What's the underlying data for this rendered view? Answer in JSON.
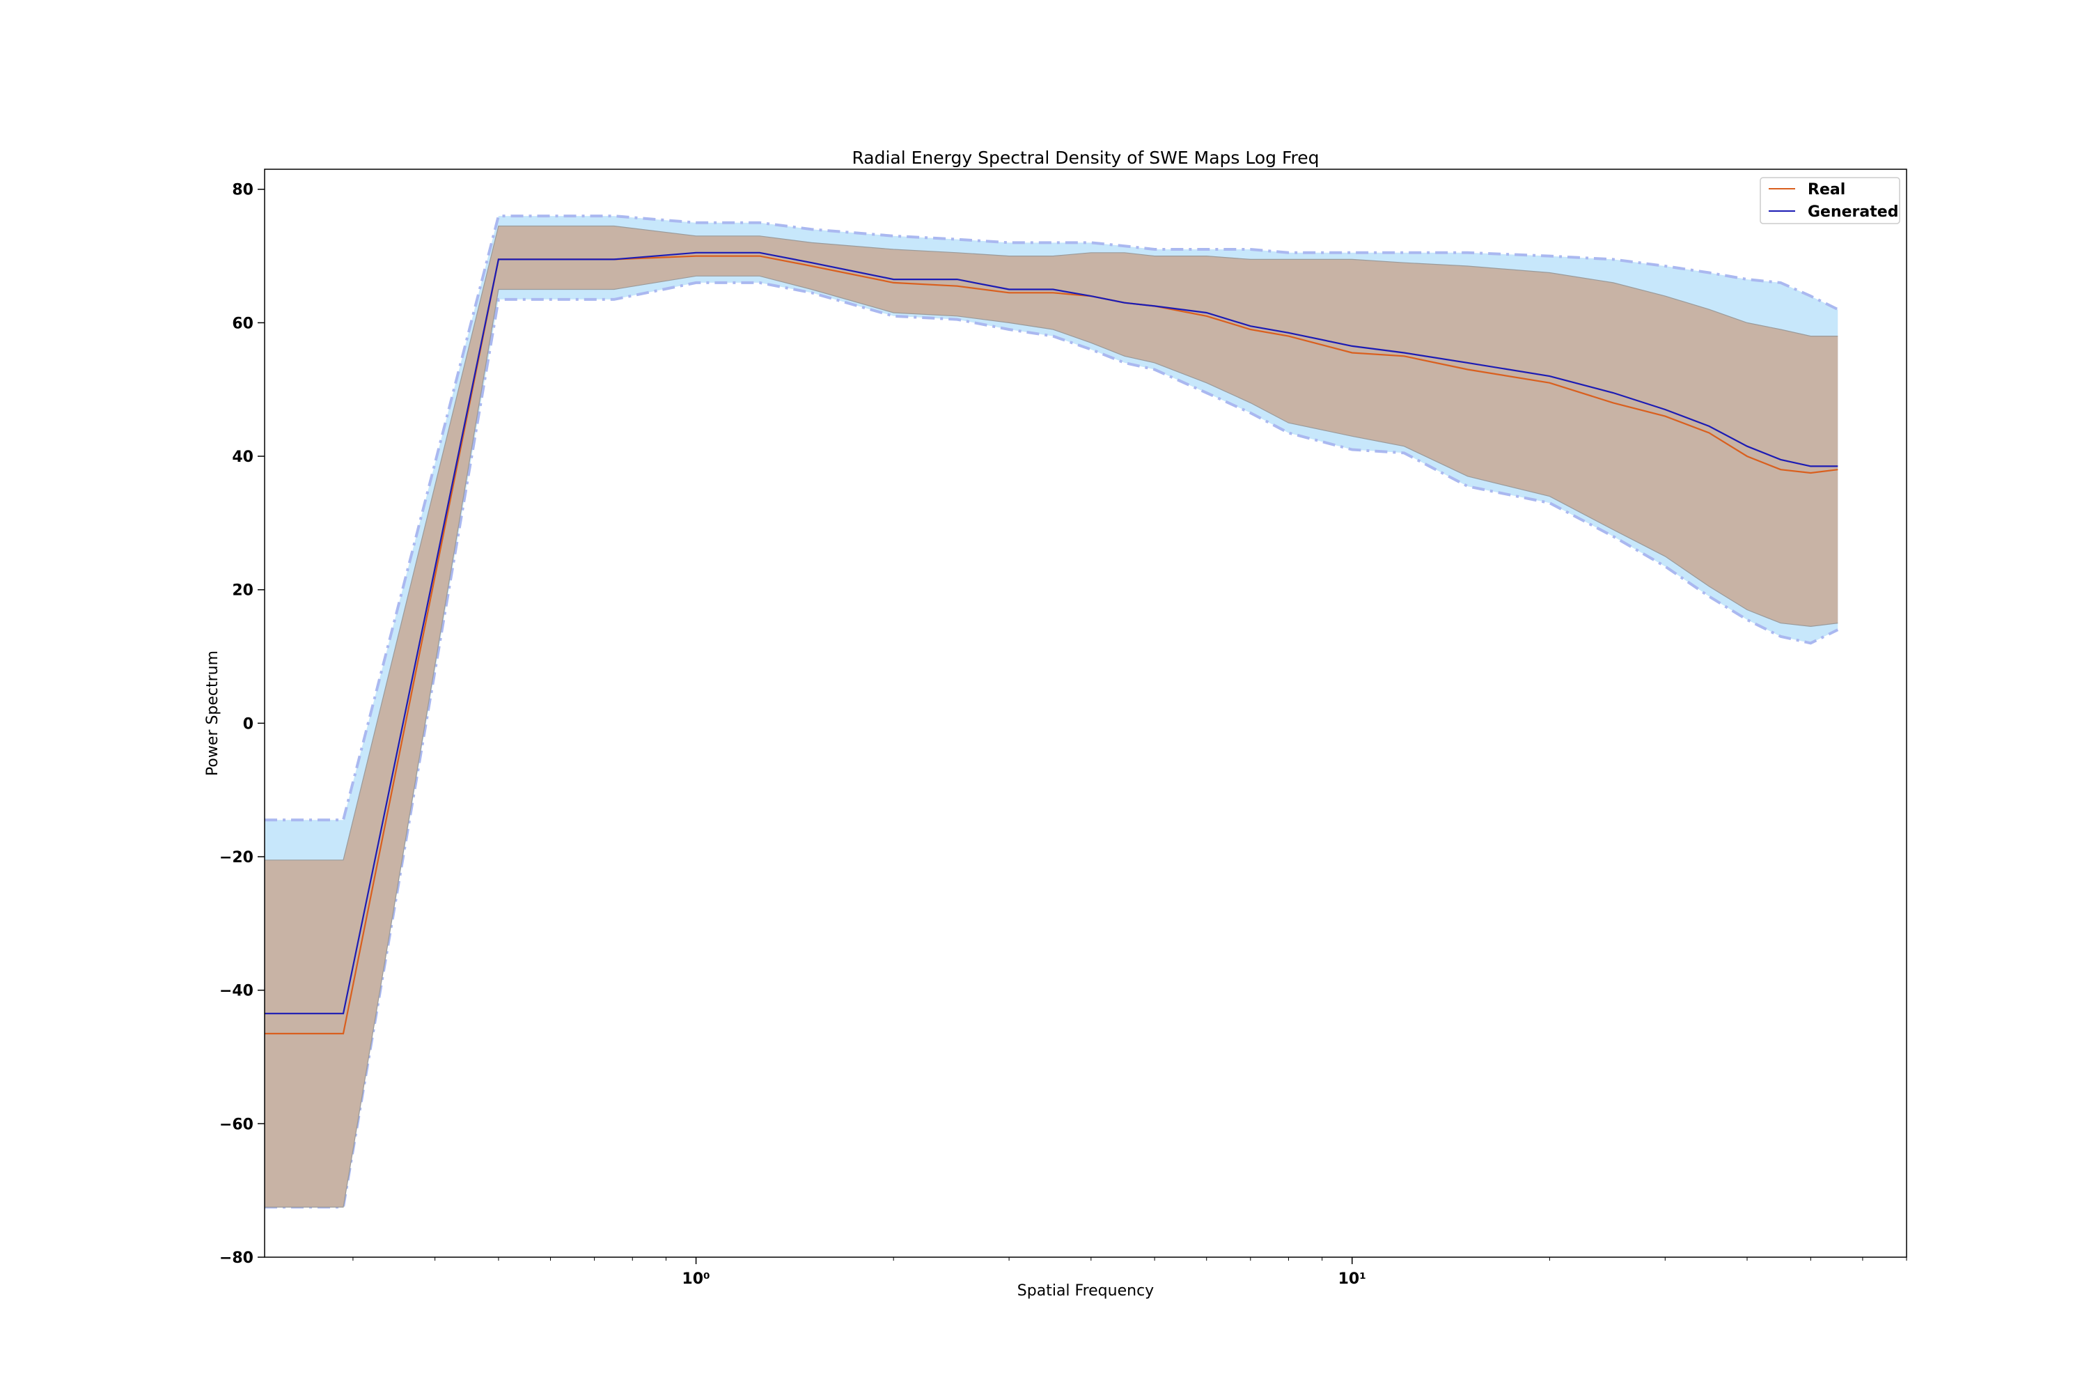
{
  "chart_data": {
    "type": "line",
    "title": "Radial Energy Spectral Density of SWE Maps Log Freq",
    "xlabel": "Spatial Frequency",
    "ylabel": "Power Spectrum",
    "xscale": "log",
    "xlim": [
      0.22,
      70
    ],
    "ylim": [
      -80,
      83
    ],
    "grid": false,
    "legend_position": "top-right",
    "x_ticks": [
      {
        "value": 1,
        "label": "10⁰"
      },
      {
        "value": 10,
        "label": "10¹"
      }
    ],
    "y_ticks": [
      {
        "value": 80,
        "label": "80"
      },
      {
        "value": 60,
        "label": "60"
      },
      {
        "value": 40,
        "label": "40"
      },
      {
        "value": 20,
        "label": "20"
      },
      {
        "value": 0,
        "label": "0"
      },
      {
        "value": -20,
        "label": "−20"
      },
      {
        "value": -40,
        "label": "−40"
      },
      {
        "value": -60,
        "label": "−60"
      },
      {
        "value": -80,
        "label": "−80"
      }
    ],
    "x": [
      0.22,
      0.29,
      0.5,
      0.75,
      1.0,
      1.25,
      1.5,
      2.0,
      2.5,
      3.0,
      3.5,
      4.0,
      4.5,
      5.0,
      6.0,
      7.0,
      8.0,
      10.0,
      12.0,
      15.0,
      20.0,
      25.0,
      30.0,
      35.0,
      40.0,
      45.0,
      50.0,
      55.0
    ],
    "series": [
      {
        "name": "Real",
        "color": "#d95f1e",
        "values": [
          -46.5,
          -46.5,
          69.5,
          69.5,
          70.0,
          70.0,
          68.5,
          66.0,
          65.5,
          64.5,
          64.5,
          64.0,
          63.0,
          62.5,
          61.0,
          59.0,
          58.0,
          55.5,
          55.0,
          53.0,
          51.0,
          48.0,
          46.0,
          43.5,
          40.0,
          38.0,
          37.5,
          38.0
        ],
        "band_upper": [
          -20.5,
          -20.5,
          74.5,
          74.5,
          73.0,
          73.0,
          72.0,
          71.0,
          70.5,
          70.0,
          70.0,
          70.5,
          70.5,
          70.0,
          70.0,
          69.5,
          69.5,
          69.5,
          69.0,
          68.5,
          67.5,
          66.0,
          64.0,
          62.0,
          60.0,
          59.0,
          58.0,
          58.0
        ],
        "band_lower": [
          -72.5,
          -72.5,
          65.0,
          65.0,
          67.0,
          67.0,
          65.0,
          61.5,
          61.0,
          60.0,
          59.0,
          57.0,
          55.0,
          54.0,
          51.0,
          48.0,
          45.0,
          43.0,
          41.5,
          37.0,
          34.0,
          29.0,
          25.0,
          20.5,
          17.0,
          15.0,
          14.5,
          15.0
        ],
        "band_color": "#c8b3a5"
      },
      {
        "name": "Generated",
        "color": "#1b1bb4",
        "values": [
          -43.5,
          -43.5,
          69.5,
          69.5,
          70.5,
          70.5,
          69.0,
          66.5,
          66.5,
          65.0,
          65.0,
          64.0,
          63.0,
          62.5,
          61.5,
          59.5,
          58.5,
          56.5,
          55.5,
          54.0,
          52.0,
          49.5,
          47.0,
          44.5,
          41.5,
          39.5,
          38.5,
          38.5
        ],
        "band_upper": [
          -14.5,
          -14.5,
          76.0,
          76.0,
          75.0,
          75.0,
          74.0,
          73.0,
          72.5,
          72.0,
          72.0,
          72.0,
          71.5,
          71.0,
          71.0,
          71.0,
          70.5,
          70.5,
          70.5,
          70.5,
          70.0,
          69.5,
          68.5,
          67.5,
          66.5,
          66.0,
          64.0,
          62.0
        ],
        "band_lower": [
          -72.5,
          -72.5,
          63.5,
          63.5,
          66.0,
          66.0,
          64.5,
          61.0,
          60.5,
          59.0,
          58.0,
          56.0,
          54.0,
          53.0,
          49.5,
          46.5,
          43.5,
          41.0,
          40.5,
          35.5,
          33.0,
          28.0,
          23.5,
          19.0,
          15.5,
          13.0,
          12.0,
          14.0
        ],
        "band_color": "#c7e7fb"
      }
    ]
  }
}
